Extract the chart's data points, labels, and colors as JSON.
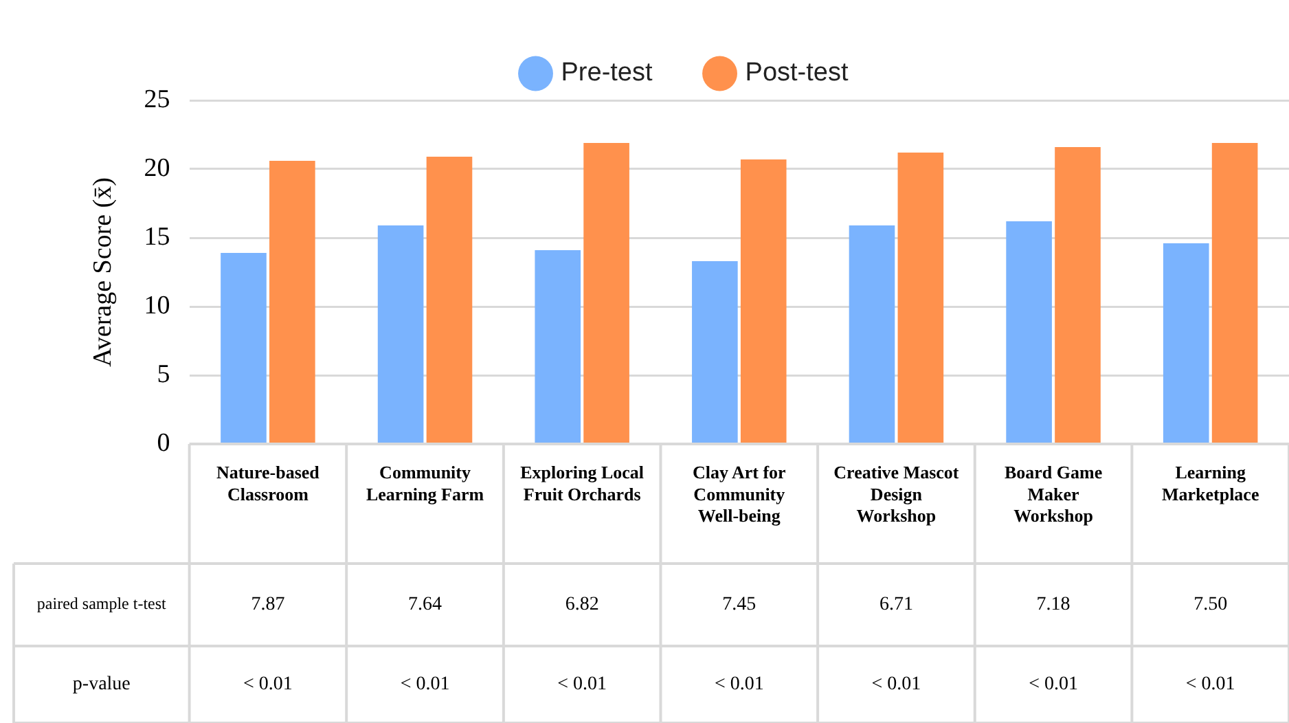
{
  "chart_data": {
    "type": "bar",
    "ylabel": "Average Score (x̄)",
    "categories": [
      "Nature-based Classroom",
      "Community Learning Farm",
      "Exploring Local Fruit Orchards",
      "Clay Art for Community Well-being",
      "Creative Mascot Design Workshop",
      "Board Game Maker Workshop",
      "Learning Marketplace"
    ],
    "series": [
      {
        "name": "Pre-test",
        "color": "#7ab3fe",
        "values": [
          13.9,
          15.9,
          14.1,
          13.3,
          15.9,
          16.2,
          14.6
        ]
      },
      {
        "name": "Post-test",
        "color": "#ff914d",
        "values": [
          20.6,
          20.9,
          21.9,
          20.7,
          21.2,
          21.6,
          21.9
        ]
      }
    ],
    "ylim": [
      0,
      25
    ],
    "yticks": [
      0,
      5,
      10,
      15,
      20,
      25
    ],
    "grid": "y",
    "legend": "top",
    "annotations": [
      "paired sample t-test",
      "7.87",
      "7.64",
      "6.82",
      "7.45",
      "6.71",
      "7.18",
      "7.50",
      "p-value",
      "< 0.01",
      "< 0.01",
      "< 0.01",
      "< 0.01",
      "< 0.01",
      "< 0.01",
      "< 0.01"
    ]
  }
}
